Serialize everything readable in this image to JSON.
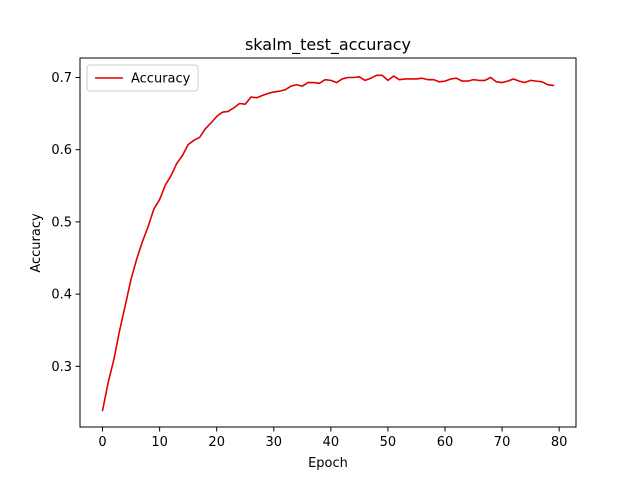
{
  "colors": {
    "line": "#e00000",
    "axis": "#000000",
    "background": "#ffffff"
  },
  "chart_data": {
    "type": "line",
    "title": "skalm_test_accuracy",
    "xlabel": "Epoch",
    "ylabel": "Accuracy",
    "xlim": [
      -3.95,
      82.95
    ],
    "ylim": [
      0.216,
      0.727
    ],
    "xticks": [
      0,
      10,
      20,
      30,
      40,
      50,
      60,
      70,
      80
    ],
    "xtick_labels": [
      "0",
      "10",
      "20",
      "30",
      "40",
      "50",
      "60",
      "70",
      "80"
    ],
    "yticks": [
      0.3,
      0.4,
      0.5,
      0.6,
      0.7
    ],
    "ytick_labels": [
      "0.3",
      "0.4",
      "0.5",
      "0.6",
      "0.7"
    ],
    "grid": false,
    "legend": {
      "position": "top-left",
      "entries": [
        "Accuracy"
      ]
    },
    "series": [
      {
        "name": "Accuracy",
        "color": "#e00000",
        "x": [
          0,
          1,
          2,
          3,
          4,
          5,
          6,
          7,
          8,
          9,
          10,
          11,
          12,
          13,
          14,
          15,
          16,
          17,
          18,
          19,
          20,
          21,
          22,
          23,
          24,
          25,
          26,
          27,
          28,
          29,
          30,
          31,
          32,
          33,
          34,
          35,
          36,
          37,
          38,
          39,
          40,
          41,
          42,
          43,
          44,
          45,
          46,
          47,
          48,
          49,
          50,
          51,
          52,
          53,
          54,
          55,
          56,
          57,
          58,
          59,
          60,
          61,
          62,
          63,
          64,
          65,
          66,
          67,
          68,
          69,
          70,
          71,
          72,
          73,
          74,
          75,
          76,
          77,
          78,
          79
        ],
        "y": [
          0.239,
          0.278,
          0.31,
          0.35,
          0.385,
          0.421,
          0.449,
          0.473,
          0.494,
          0.518,
          0.531,
          0.551,
          0.564,
          0.581,
          0.592,
          0.607,
          0.613,
          0.617,
          0.629,
          0.637,
          0.646,
          0.652,
          0.653,
          0.658,
          0.664,
          0.663,
          0.673,
          0.672,
          0.675,
          0.678,
          0.68,
          0.681,
          0.683,
          0.688,
          0.69,
          0.688,
          0.693,
          0.693,
          0.692,
          0.697,
          0.696,
          0.693,
          0.698,
          0.7,
          0.7,
          0.701,
          0.696,
          0.699,
          0.703,
          0.703,
          0.696,
          0.702,
          0.697,
          0.698,
          0.698,
          0.698,
          0.699,
          0.697,
          0.697,
          0.694,
          0.695,
          0.698,
          0.699,
          0.695,
          0.695,
          0.697,
          0.696,
          0.696,
          0.7,
          0.694,
          0.693,
          0.695,
          0.698,
          0.695,
          0.693,
          0.696,
          0.695,
          0.694,
          0.69,
          0.689
        ]
      }
    ]
  }
}
